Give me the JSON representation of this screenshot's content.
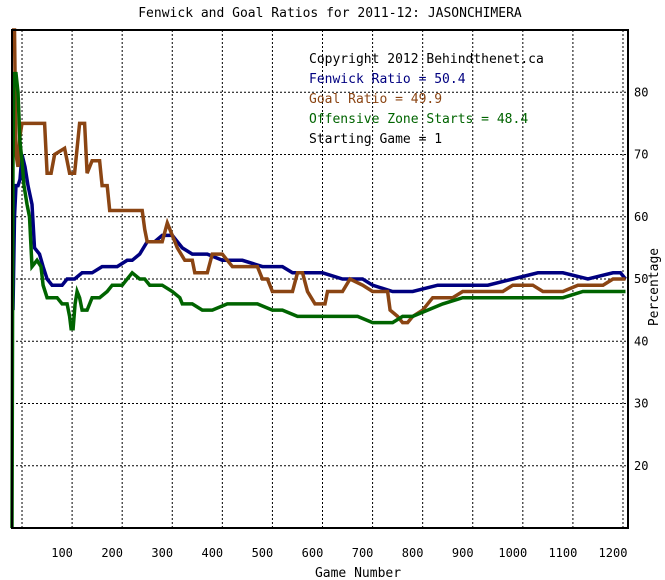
{
  "chart_data": {
    "type": "line",
    "title": "Fenwick and Goal Ratios for 2011-12: JASONCHIMERA",
    "xlabel": "Game Number",
    "ylabel": "Percentage",
    "xlim": [
      0,
      1230
    ],
    "ylim": [
      10,
      90
    ],
    "x_ticks": [
      100,
      200,
      300,
      400,
      500,
      600,
      700,
      800,
      900,
      1000,
      1100,
      1200
    ],
    "y_ticks": [
      20,
      30,
      40,
      50,
      60,
      70,
      80
    ],
    "x_grid": [
      20,
      120,
      220,
      320,
      420,
      520,
      620,
      720,
      820,
      920,
      1020,
      1120,
      1220
    ],
    "y_grid": [
      20,
      30,
      40,
      50,
      60,
      70,
      80
    ],
    "grid": true,
    "legend_placement": "top-right",
    "annotations": [
      {
        "text": "Copyright 2012 Behindthenet.ca",
        "color": "#000000"
      },
      {
        "text": "Fenwick Ratio = 50.4",
        "color": "#000080"
      },
      {
        "text": "Goal Ratio = 49.9",
        "color": "#8B4513"
      },
      {
        "text": "Offensive Zone Starts = 48.4",
        "color": "#006400"
      },
      {
        "text": "Starting Game = 1",
        "color": "#000000"
      }
    ],
    "series": [
      {
        "name": "Fenwick Ratio",
        "color": "#000080",
        "points": [
          [
            2,
            45
          ],
          [
            5,
            60
          ],
          [
            8,
            65
          ],
          [
            12,
            65
          ],
          [
            16,
            66
          ],
          [
            20,
            70
          ],
          [
            26,
            68
          ],
          [
            32,
            65
          ],
          [
            40,
            62
          ],
          [
            45,
            55
          ],
          [
            55,
            54
          ],
          [
            62,
            52
          ],
          [
            70,
            50
          ],
          [
            80,
            49
          ],
          [
            90,
            49
          ],
          [
            100,
            49
          ],
          [
            110,
            50
          ],
          [
            125,
            50
          ],
          [
            140,
            51
          ],
          [
            160,
            51
          ],
          [
            180,
            52
          ],
          [
            210,
            52
          ],
          [
            230,
            53
          ],
          [
            240,
            53
          ],
          [
            255,
            54
          ],
          [
            270,
            56
          ],
          [
            285,
            56
          ],
          [
            300,
            57
          ],
          [
            320,
            57
          ],
          [
            340,
            55
          ],
          [
            360,
            54
          ],
          [
            390,
            54
          ],
          [
            420,
            53
          ],
          [
            460,
            53
          ],
          [
            500,
            52
          ],
          [
            540,
            52
          ],
          [
            560,
            51
          ],
          [
            620,
            51
          ],
          [
            660,
            50
          ],
          [
            700,
            50
          ],
          [
            720,
            49
          ],
          [
            760,
            48
          ],
          [
            800,
            48
          ],
          [
            850,
            49
          ],
          [
            900,
            49
          ],
          [
            950,
            49
          ],
          [
            1000,
            50
          ],
          [
            1050,
            51
          ],
          [
            1100,
            51
          ],
          [
            1150,
            50
          ],
          [
            1200,
            51
          ],
          [
            1215,
            51
          ],
          [
            1225,
            50
          ]
        ]
      },
      {
        "name": "Goal Ratio",
        "color": "#8B4513",
        "points": [
          [
            0,
            90
          ],
          [
            5,
            90
          ],
          [
            8,
            70
          ],
          [
            12,
            68
          ],
          [
            16,
            73
          ],
          [
            20,
            75
          ],
          [
            40,
            75
          ],
          [
            65,
            75
          ],
          [
            70,
            67
          ],
          [
            78,
            67
          ],
          [
            85,
            70
          ],
          [
            105,
            71
          ],
          [
            115,
            67
          ],
          [
            125,
            67
          ],
          [
            135,
            75
          ],
          [
            145,
            75
          ],
          [
            150,
            67
          ],
          [
            160,
            69
          ],
          [
            175,
            69
          ],
          [
            180,
            65
          ],
          [
            190,
            65
          ],
          [
            195,
            61
          ],
          [
            260,
            61
          ],
          [
            265,
            58
          ],
          [
            270,
            56
          ],
          [
            300,
            56
          ],
          [
            310,
            59
          ],
          [
            320,
            57
          ],
          [
            330,
            55
          ],
          [
            345,
            53
          ],
          [
            360,
            53
          ],
          [
            365,
            51
          ],
          [
            390,
            51
          ],
          [
            400,
            54
          ],
          [
            420,
            54
          ],
          [
            430,
            53
          ],
          [
            440,
            52
          ],
          [
            460,
            52
          ],
          [
            490,
            52
          ],
          [
            500,
            50
          ],
          [
            510,
            50
          ],
          [
            520,
            48
          ],
          [
            560,
            48
          ],
          [
            570,
            51
          ],
          [
            580,
            51
          ],
          [
            590,
            48
          ],
          [
            605,
            46
          ],
          [
            625,
            46
          ],
          [
            630,
            48
          ],
          [
            640,
            48
          ],
          [
            660,
            48
          ],
          [
            675,
            50
          ],
          [
            700,
            49
          ],
          [
            720,
            48
          ],
          [
            740,
            48
          ],
          [
            750,
            48
          ],
          [
            755,
            45
          ],
          [
            770,
            44
          ],
          [
            780,
            43
          ],
          [
            790,
            43
          ],
          [
            800,
            44
          ],
          [
            820,
            45
          ],
          [
            840,
            47
          ],
          [
            860,
            47
          ],
          [
            880,
            47
          ],
          [
            900,
            48
          ],
          [
            930,
            48
          ],
          [
            980,
            48
          ],
          [
            1000,
            49
          ],
          [
            1040,
            49
          ],
          [
            1060,
            48
          ],
          [
            1100,
            48
          ],
          [
            1130,
            49
          ],
          [
            1160,
            49
          ],
          [
            1180,
            49
          ],
          [
            1200,
            50
          ],
          [
            1225,
            50
          ]
        ]
      },
      {
        "name": "Offensive Zone Starts",
        "color": "#006400",
        "points": [
          [
            0,
            10
          ],
          [
            2,
            70
          ],
          [
            4,
            83
          ],
          [
            8,
            83
          ],
          [
            12,
            80
          ],
          [
            16,
            72
          ],
          [
            20,
            69
          ],
          [
            24,
            65
          ],
          [
            30,
            62
          ],
          [
            35,
            60
          ],
          [
            40,
            52
          ],
          [
            50,
            53
          ],
          [
            58,
            52
          ],
          [
            62,
            49
          ],
          [
            70,
            47
          ],
          [
            90,
            47
          ],
          [
            100,
            46
          ],
          [
            110,
            46
          ],
          [
            115,
            44
          ],
          [
            118,
            42
          ],
          [
            122,
            42
          ],
          [
            126,
            46
          ],
          [
            130,
            48
          ],
          [
            135,
            47
          ],
          [
            140,
            45
          ],
          [
            150,
            45
          ],
          [
            160,
            47
          ],
          [
            175,
            47
          ],
          [
            190,
            48
          ],
          [
            200,
            49
          ],
          [
            220,
            49
          ],
          [
            240,
            51
          ],
          [
            255,
            50
          ],
          [
            265,
            50
          ],
          [
            275,
            49
          ],
          [
            300,
            49
          ],
          [
            320,
            48
          ],
          [
            335,
            47
          ],
          [
            340,
            46
          ],
          [
            360,
            46
          ],
          [
            380,
            45
          ],
          [
            400,
            45
          ],
          [
            430,
            46
          ],
          [
            460,
            46
          ],
          [
            490,
            46
          ],
          [
            520,
            45
          ],
          [
            540,
            45
          ],
          [
            570,
            44
          ],
          [
            600,
            44
          ],
          [
            630,
            44
          ],
          [
            660,
            44
          ],
          [
            690,
            44
          ],
          [
            720,
            43
          ],
          [
            760,
            43
          ],
          [
            780,
            44
          ],
          [
            800,
            44
          ],
          [
            830,
            45
          ],
          [
            860,
            46
          ],
          [
            900,
            47
          ],
          [
            940,
            47
          ],
          [
            980,
            47
          ],
          [
            1000,
            47
          ],
          [
            1040,
            47
          ],
          [
            1080,
            47
          ],
          [
            1100,
            47
          ],
          [
            1140,
            48
          ],
          [
            1180,
            48
          ],
          [
            1200,
            48
          ],
          [
            1225,
            48
          ]
        ]
      }
    ]
  }
}
